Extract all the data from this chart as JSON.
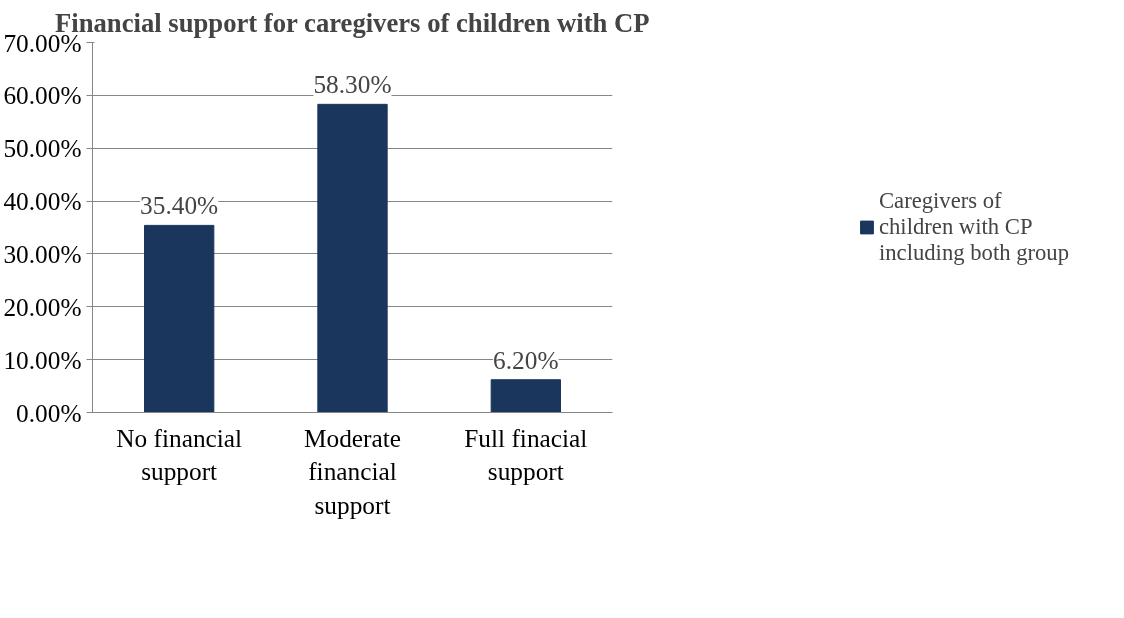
{
  "chart_data": {
    "type": "bar",
    "title": "Financial support for caregivers of children with CP",
    "categories": [
      "No financial support",
      "Moderate financial support",
      "Full finacial support"
    ],
    "series": [
      {
        "name": "Caregivers of children with CP including both group",
        "color": "#1b365d",
        "values": [
          35.4,
          58.3,
          6.2
        ],
        "value_labels": [
          "35.40%",
          "58.30%",
          "6.20%"
        ]
      }
    ],
    "ylim": [
      0,
      70
    ],
    "yticks": [
      {
        "value": 0,
        "label": "0.00%"
      },
      {
        "value": 10,
        "label": "10.00%"
      },
      {
        "value": 20,
        "label": "20.00%"
      },
      {
        "value": 30,
        "label": "30.00%"
      },
      {
        "value": 40,
        "label": "40.00%"
      },
      {
        "value": 50,
        "label": "50.00%"
      },
      {
        "value": 60,
        "label": "60.00%"
      },
      {
        "value": 70,
        "label": "70.00%"
      }
    ],
    "grid": "y",
    "legend": "right"
  }
}
